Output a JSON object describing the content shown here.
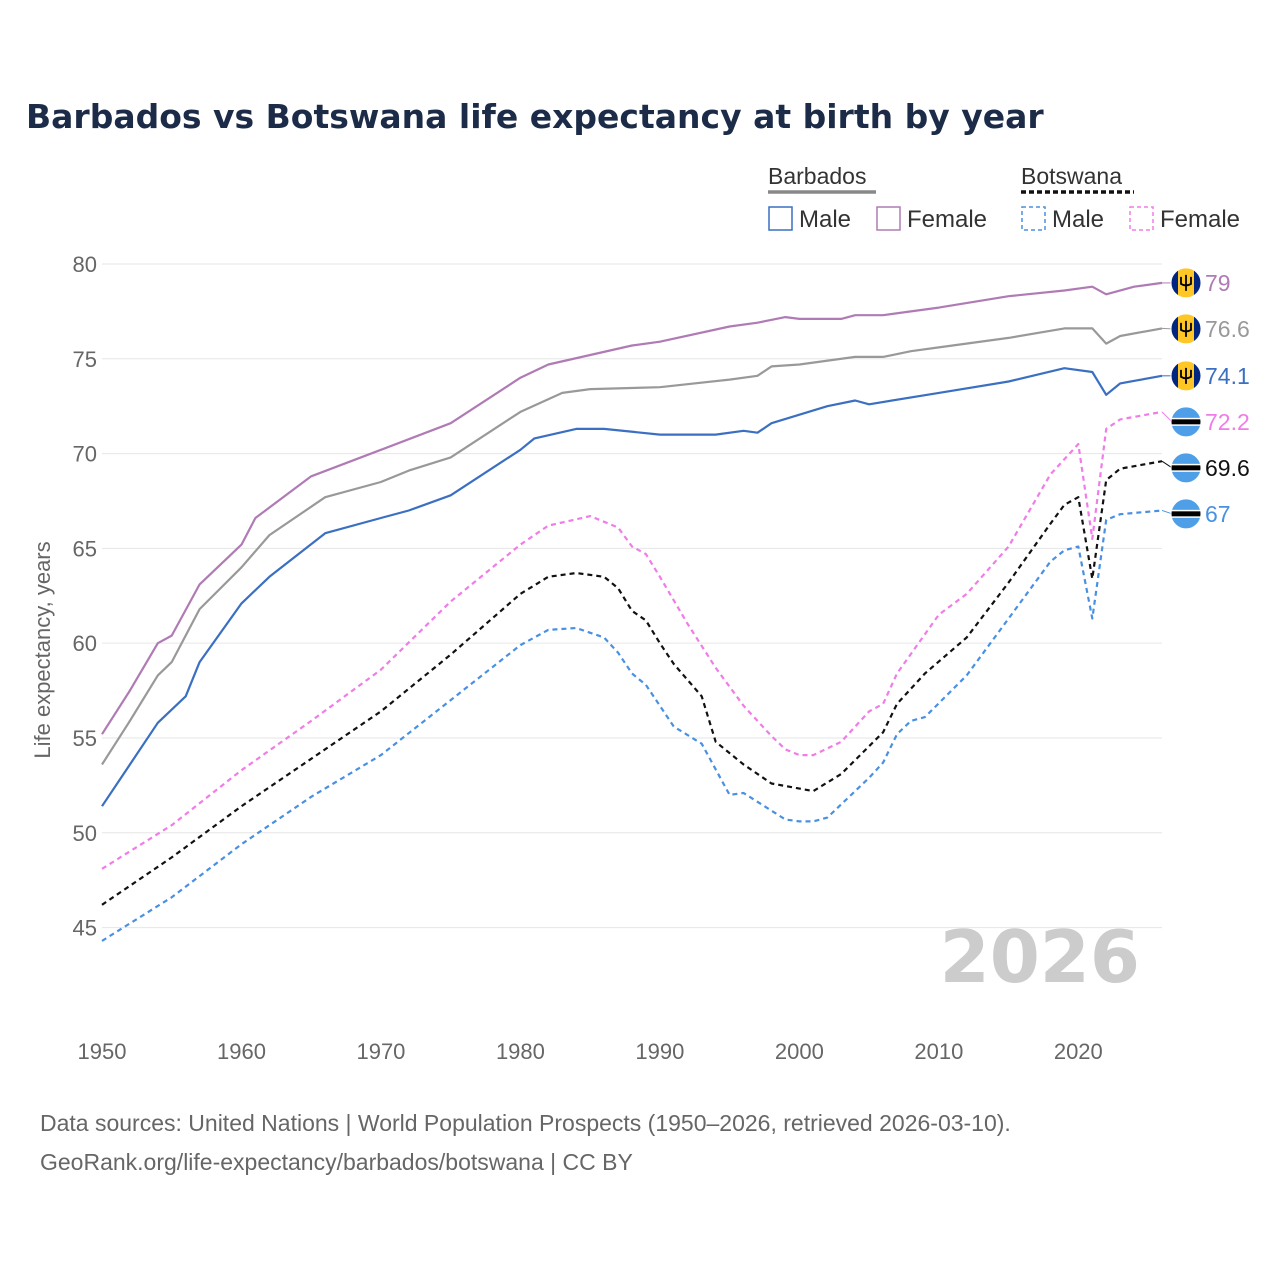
{
  "chart_data": {
    "type": "line",
    "title": "Barbados vs Botswana life expectancy at birth by year",
    "ylabel": "Life expectancy, years",
    "xlabel": "",
    "xlim": [
      1950,
      2026
    ],
    "ylim": [
      42.5,
      81
    ],
    "x_ticks": [
      1950,
      1960,
      1970,
      1980,
      1990,
      2000,
      2010,
      2020
    ],
    "y_ticks": [
      45,
      50,
      55,
      60,
      65,
      70,
      75,
      80
    ],
    "watermark_year": "2026",
    "legend": {
      "groups": [
        {
          "name": "Barbados",
          "color": "#888888",
          "style": "solid",
          "items": [
            {
              "label": "Male",
              "color": "#3a6fc2",
              "style": "solid"
            },
            {
              "label": "Female",
              "color": "#b07bb5",
              "style": "solid"
            }
          ]
        },
        {
          "name": "Botswana",
          "color": "#111111",
          "style": "dashed",
          "items": [
            {
              "label": "Male",
              "color": "#4a90e2",
              "style": "dashed"
            },
            {
              "label": "Female",
              "color": "#f07ce8",
              "style": "dashed"
            }
          ]
        }
      ]
    },
    "series": [
      {
        "name": "Barbados Female",
        "color": "#b07bb5",
        "dash": false,
        "end_label": "79",
        "flag": "barbados",
        "points": [
          [
            1950,
            55.2
          ],
          [
            1952,
            57.5
          ],
          [
            1954,
            60.0
          ],
          [
            1955,
            60.4
          ],
          [
            1957,
            63.1
          ],
          [
            1960,
            65.2
          ],
          [
            1961,
            66.6
          ],
          [
            1965,
            68.8
          ],
          [
            1970,
            70.2
          ],
          [
            1975,
            71.6
          ],
          [
            1980,
            74.0
          ],
          [
            1982,
            74.7
          ],
          [
            1985,
            75.2
          ],
          [
            1988,
            75.7
          ],
          [
            1990,
            75.9
          ],
          [
            1995,
            76.7
          ],
          [
            1997,
            76.9
          ],
          [
            1999,
            77.2
          ],
          [
            2000,
            77.1
          ],
          [
            2003,
            77.1
          ],
          [
            2004,
            77.3
          ],
          [
            2006,
            77.3
          ],
          [
            2008,
            77.5
          ],
          [
            2010,
            77.7
          ],
          [
            2015,
            78.3
          ],
          [
            2019,
            78.6
          ],
          [
            2021,
            78.8
          ],
          [
            2022,
            78.4
          ],
          [
            2024,
            78.8
          ],
          [
            2026,
            79.0
          ]
        ]
      },
      {
        "name": "Barbados Both",
        "color": "#999999",
        "dash": false,
        "end_label": "76.6",
        "flag": "barbados",
        "points": [
          [
            1950,
            53.6
          ],
          [
            1952,
            55.9
          ],
          [
            1954,
            58.3
          ],
          [
            1955,
            59.0
          ],
          [
            1957,
            61.8
          ],
          [
            1960,
            64.0
          ],
          [
            1962,
            65.7
          ],
          [
            1966,
            67.7
          ],
          [
            1970,
            68.5
          ],
          [
            1972,
            69.1
          ],
          [
            1975,
            69.8
          ],
          [
            1980,
            72.2
          ],
          [
            1983,
            73.2
          ],
          [
            1985,
            73.4
          ],
          [
            1990,
            73.5
          ],
          [
            1995,
            73.9
          ],
          [
            1997,
            74.1
          ],
          [
            1998,
            74.6
          ],
          [
            2000,
            74.7
          ],
          [
            2004,
            75.1
          ],
          [
            2006,
            75.1
          ],
          [
            2008,
            75.4
          ],
          [
            2010,
            75.6
          ],
          [
            2015,
            76.1
          ],
          [
            2019,
            76.6
          ],
          [
            2021,
            76.6
          ],
          [
            2022,
            75.8
          ],
          [
            2023,
            76.2
          ],
          [
            2026,
            76.6
          ]
        ]
      },
      {
        "name": "Barbados Male",
        "color": "#3a6fc2",
        "dash": false,
        "end_label": "74.1",
        "flag": "barbados",
        "points": [
          [
            1950,
            51.4
          ],
          [
            1952,
            53.6
          ],
          [
            1954,
            55.8
          ],
          [
            1956,
            57.2
          ],
          [
            1957,
            59.0
          ],
          [
            1960,
            62.1
          ],
          [
            1962,
            63.5
          ],
          [
            1966,
            65.8
          ],
          [
            1970,
            66.6
          ],
          [
            1972,
            67.0
          ],
          [
            1975,
            67.8
          ],
          [
            1980,
            70.2
          ],
          [
            1981,
            70.8
          ],
          [
            1984,
            71.3
          ],
          [
            1986,
            71.3
          ],
          [
            1990,
            71.0
          ],
          [
            1994,
            71.0
          ],
          [
            1996,
            71.2
          ],
          [
            1997,
            71.1
          ],
          [
            1998,
            71.6
          ],
          [
            2002,
            72.5
          ],
          [
            2004,
            72.8
          ],
          [
            2005,
            72.6
          ],
          [
            2010,
            73.2
          ],
          [
            2015,
            73.8
          ],
          [
            2019,
            74.5
          ],
          [
            2021,
            74.3
          ],
          [
            2022,
            73.1
          ],
          [
            2023,
            73.7
          ],
          [
            2026,
            74.1
          ]
        ]
      },
      {
        "name": "Botswana Female",
        "color": "#f07ce8",
        "dash": true,
        "end_label": "72.2",
        "flag": "botswana",
        "points": [
          [
            1950,
            48.1
          ],
          [
            1955,
            50.4
          ],
          [
            1960,
            53.3
          ],
          [
            1965,
            55.9
          ],
          [
            1970,
            58.6
          ],
          [
            1975,
            62.2
          ],
          [
            1980,
            65.2
          ],
          [
            1982,
            66.2
          ],
          [
            1985,
            66.7
          ],
          [
            1987,
            66.1
          ],
          [
            1988,
            65.1
          ],
          [
            1989,
            64.7
          ],
          [
            1990,
            63.5
          ],
          [
            1992,
            61.0
          ],
          [
            1994,
            58.7
          ],
          [
            1996,
            56.7
          ],
          [
            1998,
            55.1
          ],
          [
            1999,
            54.4
          ],
          [
            2000,
            54.1
          ],
          [
            2001,
            54.1
          ],
          [
            2003,
            54.8
          ],
          [
            2005,
            56.4
          ],
          [
            2006,
            56.8
          ],
          [
            2007,
            58.4
          ],
          [
            2010,
            61.5
          ],
          [
            2012,
            62.6
          ],
          [
            2015,
            65.1
          ],
          [
            2018,
            68.9
          ],
          [
            2020,
            70.5
          ],
          [
            2021,
            65.5
          ],
          [
            2022,
            71.3
          ],
          [
            2023,
            71.8
          ],
          [
            2026,
            72.2
          ]
        ]
      },
      {
        "name": "Botswana Both",
        "color": "#111111",
        "dash": true,
        "end_label": "69.6",
        "flag": "botswana",
        "points": [
          [
            1950,
            46.2
          ],
          [
            1955,
            48.7
          ],
          [
            1960,
            51.4
          ],
          [
            1965,
            53.9
          ],
          [
            1970,
            56.4
          ],
          [
            1975,
            59.4
          ],
          [
            1980,
            62.6
          ],
          [
            1982,
            63.5
          ],
          [
            1984,
            63.7
          ],
          [
            1986,
            63.5
          ],
          [
            1987,
            62.9
          ],
          [
            1988,
            61.7
          ],
          [
            1989,
            61.2
          ],
          [
            1990,
            60.0
          ],
          [
            1991,
            58.9
          ],
          [
            1993,
            57.2
          ],
          [
            1994,
            54.8
          ],
          [
            1996,
            53.6
          ],
          [
            1998,
            52.6
          ],
          [
            2001,
            52.2
          ],
          [
            2003,
            53.1
          ],
          [
            2006,
            55.3
          ],
          [
            2007,
            56.8
          ],
          [
            2009,
            58.4
          ],
          [
            2012,
            60.3
          ],
          [
            2015,
            63.2
          ],
          [
            2018,
            66.3
          ],
          [
            2019,
            67.3
          ],
          [
            2020,
            67.7
          ],
          [
            2021,
            63.4
          ],
          [
            2022,
            68.6
          ],
          [
            2023,
            69.2
          ],
          [
            2026,
            69.6
          ]
        ]
      },
      {
        "name": "Botswana Male",
        "color": "#4a90e2",
        "dash": true,
        "end_label": "67",
        "flag": "botswana",
        "points": [
          [
            1950,
            44.3
          ],
          [
            1955,
            46.6
          ],
          [
            1960,
            49.4
          ],
          [
            1965,
            51.9
          ],
          [
            1970,
            54.1
          ],
          [
            1975,
            57.0
          ],
          [
            1980,
            59.9
          ],
          [
            1982,
            60.7
          ],
          [
            1984,
            60.8
          ],
          [
            1986,
            60.3
          ],
          [
            1987,
            59.5
          ],
          [
            1988,
            58.4
          ],
          [
            1989,
            57.8
          ],
          [
            1991,
            55.6
          ],
          [
            1993,
            54.7
          ],
          [
            1995,
            52.0
          ],
          [
            1996,
            52.1
          ],
          [
            1999,
            50.7
          ],
          [
            2000,
            50.6
          ],
          [
            2001,
            50.6
          ],
          [
            2002,
            50.8
          ],
          [
            2005,
            52.9
          ],
          [
            2006,
            53.7
          ],
          [
            2007,
            55.2
          ],
          [
            2008,
            55.9
          ],
          [
            2009,
            56.1
          ],
          [
            2012,
            58.3
          ],
          [
            2015,
            61.3
          ],
          [
            2018,
            64.3
          ],
          [
            2019,
            64.9
          ],
          [
            2020,
            65.1
          ],
          [
            2021,
            61.3
          ],
          [
            2022,
            66.5
          ],
          [
            2023,
            66.8
          ],
          [
            2026,
            67.0
          ]
        ]
      }
    ]
  },
  "footer": {
    "line1": "Data sources: United Nations | World Population Prospects (1950–2026, retrieved 2026-03-10).",
    "line2": "GeoRank.org/life-expectancy/barbados/botswana | CC BY"
  },
  "colors": {
    "title": "#1c2b47",
    "grid": "#e6e6e6",
    "barbados_blue": "#00267f",
    "barbados_gold": "#ffc726",
    "botswana_blue": "#4e9fe8"
  }
}
